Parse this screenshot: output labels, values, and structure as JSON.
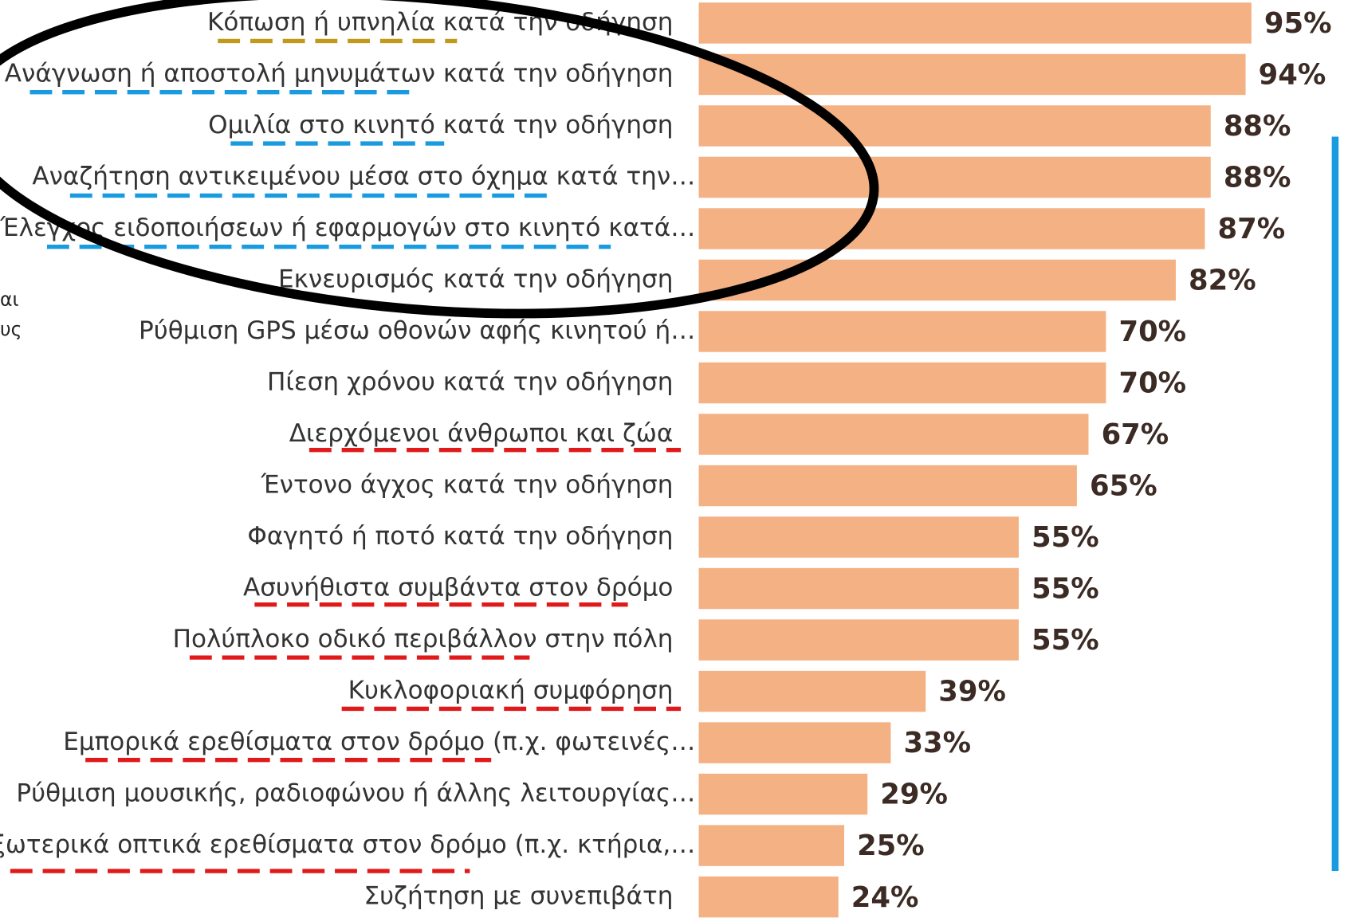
{
  "chart_data": {
    "type": "hbar",
    "categories": [
      "Κόπωση ή υπνηλία κατά την οδήγηση",
      "Ανάγνωση ή αποστολή μηνυμάτων κατά την οδήγηση",
      "Ομιλία στο κινητό κατά την οδήγηση",
      "Αναζήτηση αντικειμένου μέσα στο όχημα κατά την…",
      "Έλεγχος ειδοποιήσεων ή εφαρμογών στο κινητό κατά…",
      "Εκνευρισμός κατά την οδήγηση",
      "Ρύθμιση GPS μέσω οθονών αφής κινητού ή…",
      "Πίεση χρόνου κατά την οδήγηση",
      "Διερχόμενοι άνθρωποι και ζώα",
      "Έντονο άγχος κατά την οδήγηση",
      "Φαγητό ή ποτό κατά την οδήγηση",
      "Ασυνήθιστα συμβάντα στον δρόμο",
      "Πολύπλοκο οδικό περιβάλλον στην πόλη",
      "Κυκλοφοριακή συμφόρηση",
      "Εμπορικά ερεθίσματα στον δρόμο (π.χ. φωτεινές…",
      "Ρύθμιση μουσικής, ραδιοφώνου ή άλλης λειτουργίας…",
      "Εξωτερικά οπτικά ερεθίσματα στον δρόμο (π.χ. κτήρια,…",
      "Συζήτηση με συνεπιβάτη"
    ],
    "values": [
      95,
      94,
      88,
      88,
      87,
      82,
      70,
      70,
      67,
      65,
      55,
      55,
      55,
      39,
      33,
      29,
      25,
      24
    ],
    "value_labels": [
      "95%",
      "94%",
      "88%",
      "88%",
      "87%",
      "82%",
      "70%",
      "70%",
      "67%",
      "65%",
      "55%",
      "55%",
      "55%",
      "39%",
      "33%",
      "29%",
      "25%",
      "24%"
    ],
    "color": "#f4b183",
    "xlim": [
      0,
      100
    ],
    "side_fragments": [
      "αι",
      "υς"
    ]
  }
}
